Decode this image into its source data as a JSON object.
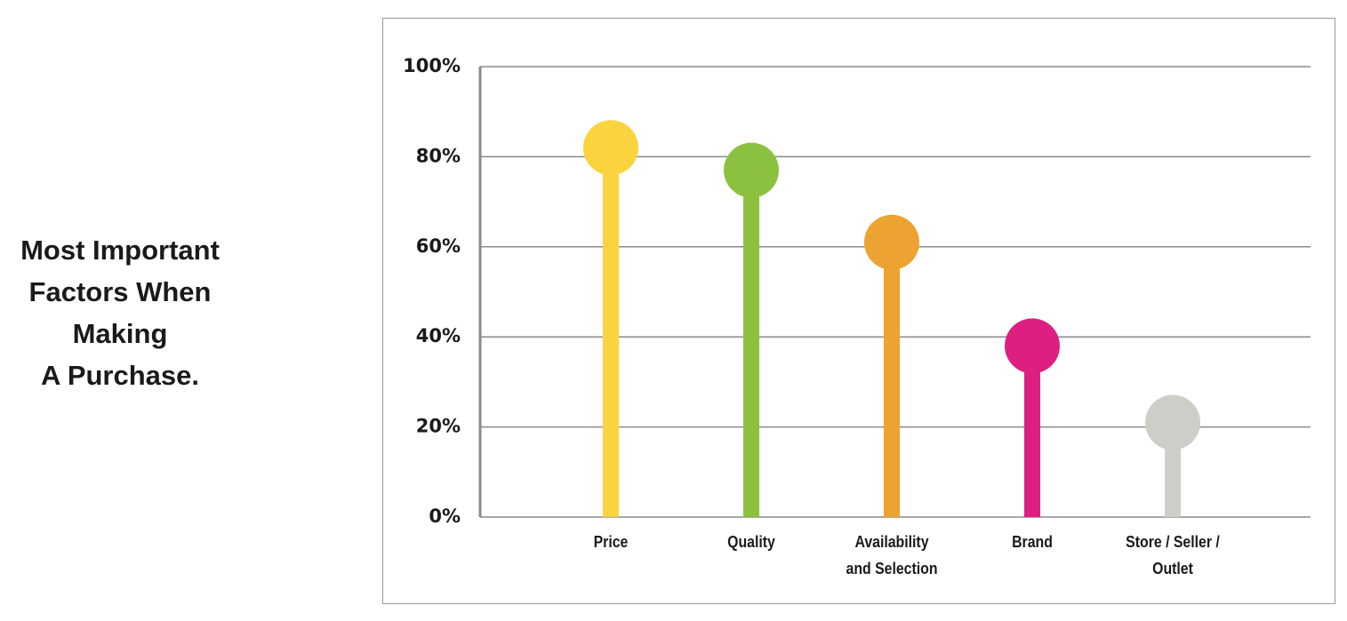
{
  "chart_data": {
    "type": "lollipop",
    "title_lines": [
      "Most Important",
      "Factors When",
      "Making",
      "A Purchase."
    ],
    "categories": [
      "Price",
      "Quality",
      "Availability and Selection",
      "Brand",
      "Store / Seller / Outlet"
    ],
    "values": [
      82,
      77,
      61,
      38,
      21
    ],
    "colors": [
      "#fad43f",
      "#8bc13f",
      "#eda332",
      "#dc1f81",
      "#cfcdc8"
    ],
    "ylim": [
      0,
      100
    ],
    "yticks": [
      {
        "value": 0,
        "label": "0%"
      },
      {
        "value": 20,
        "label": "20%"
      },
      {
        "value": 40,
        "label": "40%"
      },
      {
        "value": 60,
        "label": "60%"
      },
      {
        "value": 80,
        "label": "80%"
      },
      {
        "value": 100,
        "label": "100%"
      }
    ],
    "grid": true
  }
}
